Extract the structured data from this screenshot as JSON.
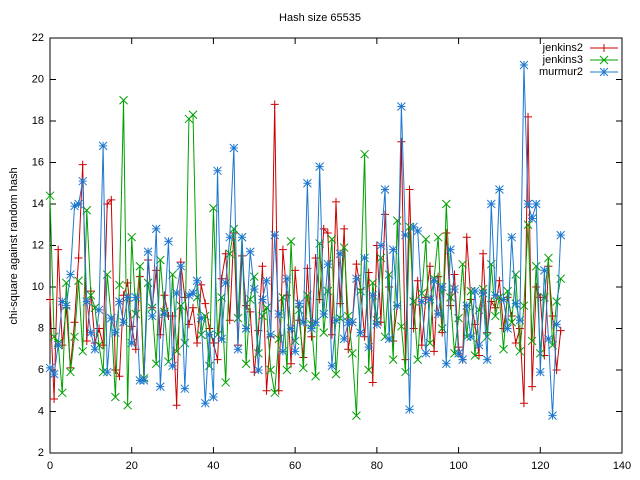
{
  "chart_data": {
    "type": "line",
    "title": "Hash size 65535",
    "y_label": "chi-square against random hash",
    "xlim": [
      0,
      140
    ],
    "xticks": [
      0,
      20,
      40,
      60,
      80,
      100,
      120,
      140
    ],
    "ylim": [
      2,
      22
    ],
    "yticks": [
      2,
      4,
      6,
      8,
      10,
      12,
      14,
      16,
      18,
      20,
      22
    ],
    "legend": "top right",
    "x": [
      0,
      1,
      2,
      3,
      4,
      5,
      6,
      7,
      8,
      9,
      10,
      11,
      12,
      13,
      14,
      15,
      16,
      17,
      18,
      19,
      20,
      21,
      22,
      23,
      24,
      25,
      26,
      27,
      28,
      29,
      30,
      31,
      32,
      33,
      34,
      35,
      36,
      37,
      38,
      39,
      40,
      41,
      42,
      43,
      44,
      45,
      46,
      47,
      48,
      49,
      50,
      51,
      52,
      53,
      54,
      55,
      56,
      57,
      58,
      59,
      60,
      61,
      62,
      63,
      64,
      65,
      66,
      67,
      68,
      69,
      70,
      71,
      72,
      73,
      74,
      75,
      76,
      77,
      78,
      79,
      80,
      81,
      82,
      83,
      84,
      85,
      86,
      87,
      88,
      89,
      90,
      91,
      92,
      93,
      94,
      95,
      96,
      97,
      98,
      99,
      100,
      101,
      102,
      103,
      104,
      105,
      106,
      107,
      108,
      109,
      110,
      111,
      112,
      113,
      114,
      115,
      116,
      117,
      118,
      119,
      120,
      121,
      122,
      123,
      124,
      125
    ],
    "series": [
      {
        "name": "jenkins2",
        "color": "#cc0000",
        "marker": "plus",
        "values": [
          9.4,
          4.6,
          11.8,
          7.2,
          9.0,
          6.1,
          8.3,
          11.4,
          15.9,
          7.4,
          9.8,
          7.3,
          8.0,
          7.2,
          14.0,
          14.2,
          6.0,
          5.7,
          9.6,
          10.2,
          8.1,
          7.0,
          10.5,
          5.5,
          11.3,
          9.0,
          10.8,
          7.7,
          9.6,
          8.6,
          8.6,
          4.3,
          11.2,
          9.5,
          8.2,
          9.0,
          7.3,
          10.1,
          9.2,
          8.0,
          7.3,
          6.5,
          10.4,
          11.6,
          8.4,
          12.6,
          7.2,
          11.5,
          9.1,
          8.8,
          5.9,
          7.9,
          11.0,
          5.0,
          7.6,
          18.8,
          5.0,
          11.8,
          9.6,
          6.3,
          10.8,
          8.4,
          6.6,
          10.9,
          7.6,
          11.4,
          9.4,
          12.8,
          12.6,
          7.7,
          14.1,
          9.2,
          12.8,
          7.0,
          8.3,
          11.1,
          9.9,
          7.6,
          10.7,
          5.4,
          12.0,
          8.3,
          13.5,
          10.0,
          7.4,
          9.1,
          17.0,
          6.5,
          14.7,
          8.0,
          10.3,
          7.2,
          9.5,
          11.0,
          6.9,
          10.5,
          7.8,
          12.6,
          9.1,
          10.6,
          7.1,
          6.5,
          12.4,
          9.4,
          8.2,
          6.7,
          11.6,
          7.8,
          9.3,
          9.0,
          10.3,
          8.0,
          9.5,
          8.6,
          7.3,
          8.0,
          4.4,
          18.2,
          5.2,
          10.0,
          9.5,
          6.7,
          11.0,
          8.6,
          6.0,
          7.9
        ]
      },
      {
        "name": "jenkins3",
        "color": "#00a000",
        "marker": "cross",
        "values": [
          14.4,
          7.6,
          7.3,
          4.9,
          10.2,
          5.9,
          7.6,
          10.3,
          6.9,
          13.7,
          9.6,
          9.0,
          7.2,
          5.9,
          10.6,
          8.5,
          4.7,
          10.1,
          19.0,
          4.3,
          12.4,
          8.7,
          11.0,
          5.6,
          10.2,
          9.0,
          6.3,
          11.3,
          8.8,
          6.4,
          10.6,
          6.9,
          9.1,
          7.3,
          18.1,
          18.3,
          9.5,
          7.7,
          8.6,
          6.2,
          13.8,
          7.7,
          9.5,
          5.4,
          11.6,
          12.8,
          8.5,
          12.4,
          6.3,
          9.4,
          10.5,
          6.8,
          8.6,
          9.0,
          6.0,
          4.9,
          7.5,
          9.5,
          6.0,
          12.2,
          7.4,
          8.9,
          6.1,
          9.6,
          8.2,
          5.7,
          12.1,
          7.8,
          9.8,
          12.3,
          5.8,
          8.5,
          11.9,
          8.6,
          6.8,
          3.8,
          9.8,
          16.4,
          6.0,
          10.2,
          8.4,
          11.4,
          7.6,
          10.6,
          6.5,
          13.2,
          8.1,
          5.9,
          12.9,
          9.3,
          6.5,
          9.7,
          12.3,
          7.3,
          10.4,
          12.4,
          8.0,
          14.0,
          9.5,
          6.8,
          8.5,
          11.1,
          7.6,
          9.8,
          6.7,
          8.9,
          9.9,
          7.6,
          11.1,
          8.6,
          9.5,
          7.0,
          9.8,
          8.3,
          10.6,
          6.9,
          9.1,
          13.0,
          7.4,
          11.0,
          6.8,
          9.5,
          11.4,
          7.2,
          9.3,
          10.4
        ]
      },
      {
        "name": "murmur2",
        "color": "#1e78d0",
        "marker": "star",
        "values": [
          6.1,
          5.8,
          7.2,
          9.3,
          9.1,
          10.6,
          13.9,
          14.0,
          15.1,
          9.3,
          7.8,
          7.0,
          8.9,
          16.8,
          5.9,
          8.5,
          7.8,
          9.3,
          8.3,
          9.5,
          7.3,
          9.5,
          5.5,
          5.5,
          11.7,
          8.6,
          12.8,
          5.2,
          8.7,
          12.2,
          6.2,
          9.7,
          11.0,
          5.1,
          9.6,
          9.7,
          10.3,
          8.5,
          4.4,
          7.7,
          4.7,
          15.6,
          7.5,
          10.2,
          12.4,
          16.7,
          7.0,
          12.4,
          8.0,
          11.7,
          9.9,
          6.0,
          9.4,
          10.3,
          7.7,
          12.5,
          8.7,
          6.9,
          10.4,
          8.0,
          6.9,
          9.2,
          8.3,
          15.0,
          8.0,
          8.3,
          15.8,
          8.7,
          11.1,
          6.2,
          8.4,
          11.6,
          7.5,
          8.3,
          8.3,
          10.4,
          7.8,
          11.4,
          7.1,
          9.6,
          8.2,
          12.0,
          14.7,
          7.5,
          11.8,
          9.1,
          18.7,
          12.5,
          4.1,
          12.9,
          12.7,
          9.3,
          6.8,
          9.4,
          10.3,
          8.7,
          10.0,
          6.3,
          11.8,
          9.9,
          6.8,
          6.5,
          9.1,
          7.6,
          9.8,
          7.2,
          9.7,
          6.5,
          14.0,
          9.6,
          14.7,
          9.4,
          8.0,
          12.4,
          9.2,
          8.4,
          20.7,
          14.0,
          13.3,
          14.0,
          5.9,
          10.8,
          7.5,
          3.8,
          8.2,
          12.5
        ]
      }
    ]
  }
}
